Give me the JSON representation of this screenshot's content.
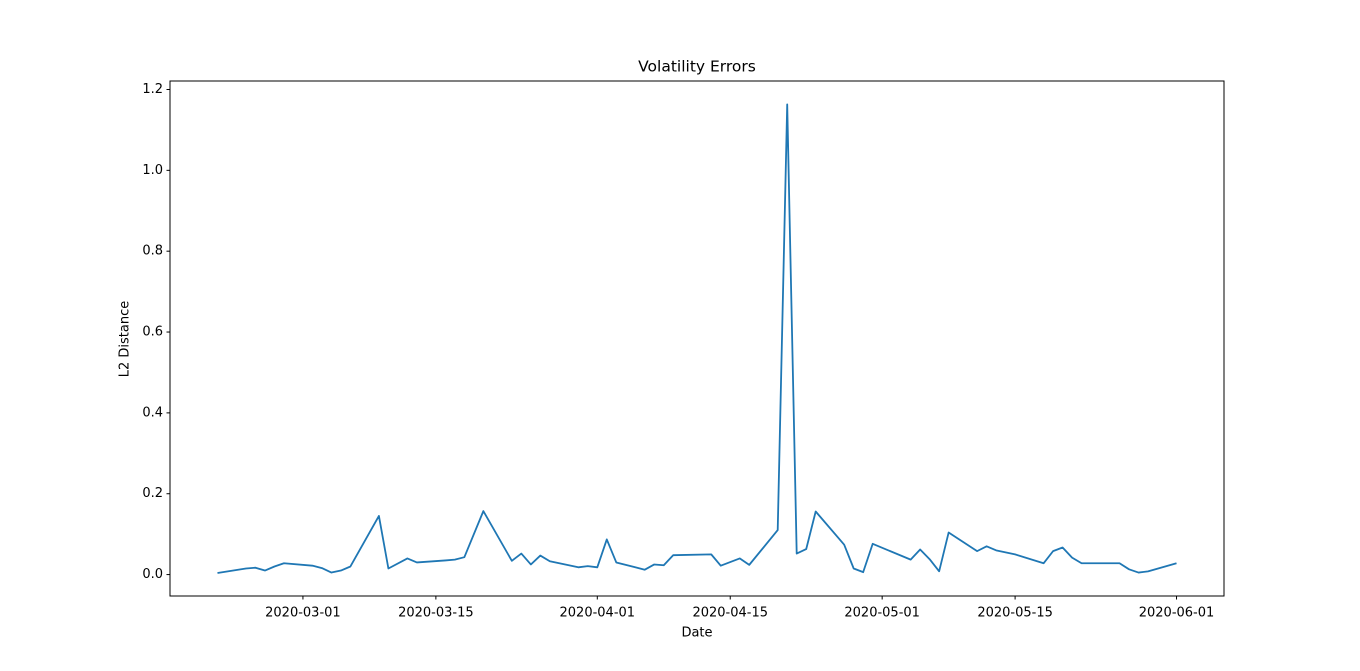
{
  "chart_data": {
    "type": "line",
    "title": "Volatility Errors",
    "xlabel": "Date",
    "ylabel": "L2 Distance",
    "x": [
      "2020-02-21",
      "2020-02-24",
      "2020-02-25",
      "2020-02-26",
      "2020-02-27",
      "2020-02-28",
      "2020-03-02",
      "2020-03-03",
      "2020-03-04",
      "2020-03-05",
      "2020-03-06",
      "2020-03-09",
      "2020-03-10",
      "2020-03-12",
      "2020-03-13",
      "2020-03-16",
      "2020-03-17",
      "2020-03-18",
      "2020-03-20",
      "2020-03-23",
      "2020-03-24",
      "2020-03-25",
      "2020-03-26",
      "2020-03-27",
      "2020-03-30",
      "2020-03-31",
      "2020-04-01",
      "2020-04-02",
      "2020-04-03",
      "2020-04-06",
      "2020-04-07",
      "2020-04-08",
      "2020-04-09",
      "2020-04-13",
      "2020-04-14",
      "2020-04-16",
      "2020-04-17",
      "2020-04-20",
      "2020-04-21",
      "2020-04-22",
      "2020-04-23",
      "2020-04-24",
      "2020-04-27",
      "2020-04-28",
      "2020-04-29",
      "2020-04-30",
      "2020-05-04",
      "2020-05-05",
      "2020-05-06",
      "2020-05-07",
      "2020-05-08",
      "2020-05-11",
      "2020-05-12",
      "2020-05-13",
      "2020-05-15",
      "2020-05-18",
      "2020-05-19",
      "2020-05-20",
      "2020-05-21",
      "2020-05-22",
      "2020-05-26",
      "2020-05-27",
      "2020-05-28",
      "2020-05-29",
      "2020-06-01"
    ],
    "values": [
      0.004,
      0.015,
      0.017,
      0.01,
      0.02,
      0.028,
      0.022,
      0.016,
      0.005,
      0.01,
      0.02,
      0.145,
      0.015,
      0.04,
      0.03,
      0.035,
      0.037,
      0.043,
      0.157,
      0.034,
      0.052,
      0.025,
      0.047,
      0.033,
      0.018,
      0.021,
      0.018,
      0.087,
      0.03,
      0.012,
      0.025,
      0.023,
      0.048,
      0.05,
      0.022,
      0.04,
      0.024,
      0.11,
      1.163,
      0.052,
      0.063,
      0.156,
      0.074,
      0.015,
      0.006,
      0.076,
      0.037,
      0.062,
      0.038,
      0.008,
      0.104,
      0.058,
      0.07,
      0.06,
      0.05,
      0.028,
      0.058,
      0.067,
      0.042,
      0.028,
      0.028,
      0.013,
      0.005,
      0.008,
      0.028
    ],
    "color": "#1f77b4",
    "xlim": [
      "2020-02-16",
      "2020-06-06"
    ],
    "xticks": [
      "2020-03-01",
      "2020-03-15",
      "2020-04-01",
      "2020-04-15",
      "2020-05-01",
      "2020-05-15",
      "2020-06-01"
    ],
    "ylim": [
      -0.053,
      1.221
    ],
    "yticks": [
      {
        "value": 0,
        "label": "0.0"
      },
      0.2,
      0.4,
      0.6,
      0.8,
      {
        "value": 1,
        "label": "1.0"
      },
      1.2
    ],
    "grid": false
  }
}
